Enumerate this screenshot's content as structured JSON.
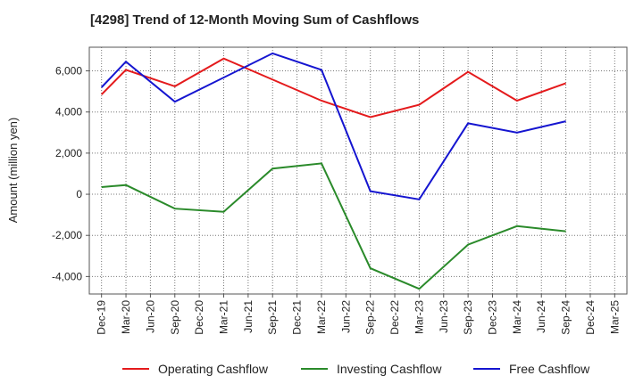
{
  "chart_data": {
    "type": "line",
    "title": "[4298]  Trend of 12-Month Moving Sum of Cashflows",
    "ylabel": "Amount (million yen)",
    "xlabel": "",
    "categories": [
      "Dec-19",
      "Mar-20",
      "Jun-20",
      "Sep-20",
      "Dec-20",
      "Mar-21",
      "Jun-21",
      "Sep-21",
      "Dec-21",
      "Mar-22",
      "Jun-22",
      "Sep-22",
      "Dec-22",
      "Mar-23",
      "Jun-23",
      "Sep-23",
      "Dec-23",
      "Mar-24",
      "Jun-24",
      "Sep-24",
      "Dec-24",
      "Mar-25"
    ],
    "yticks": [
      -4000,
      -2000,
      0,
      2000,
      4000,
      6000
    ],
    "ytick_labels": [
      "-4,000",
      "-2,000",
      "0",
      "2,000",
      "4,000",
      "6,000"
    ],
    "ylim": [
      -4850,
      7150
    ],
    "grid": true,
    "legend_position": "bottom",
    "series": [
      {
        "name": "Operating Cashflow",
        "color": "#e41a1c",
        "values": [
          4850,
          6050,
          null,
          5250,
          null,
          6600,
          null,
          null,
          null,
          4550,
          null,
          3750,
          null,
          4350,
          null,
          5950,
          null,
          4550,
          null,
          5400,
          null,
          null
        ]
      },
      {
        "name": "Investing Cashflow",
        "color": "#2a8a2a",
        "values": [
          350,
          450,
          null,
          -700,
          null,
          -850,
          null,
          1250,
          null,
          1500,
          null,
          -3600,
          null,
          -4600,
          null,
          -2450,
          null,
          -1550,
          null,
          -1800,
          null,
          null
        ]
      },
      {
        "name": "Free Cashflow",
        "color": "#1515d0",
        "values": [
          5200,
          6450,
          null,
          4500,
          null,
          null,
          null,
          6850,
          null,
          6050,
          null,
          150,
          null,
          -250,
          null,
          3450,
          null,
          3000,
          null,
          3550,
          null,
          null
        ]
      }
    ]
  }
}
